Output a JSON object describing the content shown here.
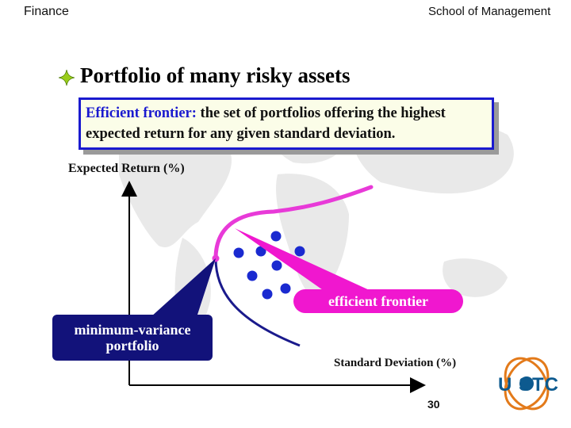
{
  "header": {
    "left_title": "Finance",
    "right_title": "School of Management"
  },
  "slide": {
    "heading": "Portfolio of many risky assets",
    "definition_term": "Efficient frontier:",
    "definition_text": " the set of portfolios offering the highest expected return for any given standard deviation."
  },
  "diagram": {
    "y_axis_label": "Expected Return (%)",
    "x_axis_label": "Standard Deviation (%)",
    "callout_min_variance": "minimum-variance portfolio",
    "callout_efficient_frontier": "efficient frontier",
    "colors": {
      "frontier": "#e83ad8",
      "lower_curve": "#1a1a8c",
      "dots": "#1a2ad0",
      "callout_mv": "#12127a",
      "callout_ef": "#f017cf"
    }
  },
  "footer": {
    "page_number": "30",
    "logo_text": "U STC"
  },
  "icons": {
    "bullet": "diamond-bullet-icon",
    "logo": "uestc-logo-icon"
  }
}
